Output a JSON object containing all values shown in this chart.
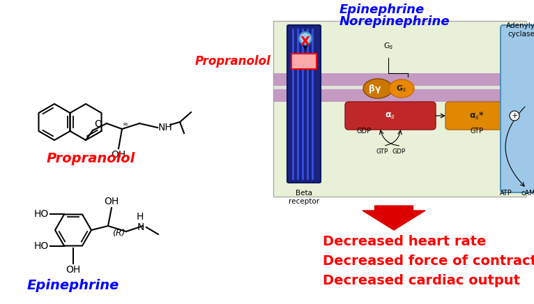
{
  "propranolol_label": "Propranolol",
  "propranolol_label_color": "#ff0000",
  "epinephrine_label": "Epinephrine",
  "epinephrine_label_color": "#0000ff",
  "epinephrine_norepinephrine_line1": "Epinephrine",
  "epinephrine_norepinephrine_line2": "Norepinephrine",
  "epinephrine_norepinephrine_color": "#0000ff",
  "propranolol_right_label": "Propranolol",
  "propranolol_right_color": "#ff0000",
  "x_marker": "X",
  "x_color": "#ff0000",
  "decreased_lines": [
    "Decreased heart rate",
    "Decreased force of contraction",
    "Decreased cardiac output"
  ],
  "decreased_color": "#ff0000",
  "arrow_color": "#dd0000",
  "bg_color": "#ffffff",
  "diagram_bg": "#e8f0d8",
  "membrane_color_top": "#c8a0c8",
  "membrane_color_bot": "#b890b8",
  "receptor_color": "#1a237e",
  "gs_orange": "#e07800",
  "bg_orange": "#cc6600",
  "alpha_red": "#c02020",
  "alpha2_orange": "#e08000",
  "adenylyl_blue": "#90b8e0",
  "propranolol_block_color": "#ffaaaa",
  "ligand_blue": "#80b8e8",
  "font_size_propranolol": 14,
  "font_size_epinephrine": 14,
  "font_size_epinor": 13,
  "font_size_propranolol_right": 12,
  "font_size_decreased": 14,
  "font_size_small": 7,
  "font_size_medium": 8,
  "font_size_greek": 9
}
